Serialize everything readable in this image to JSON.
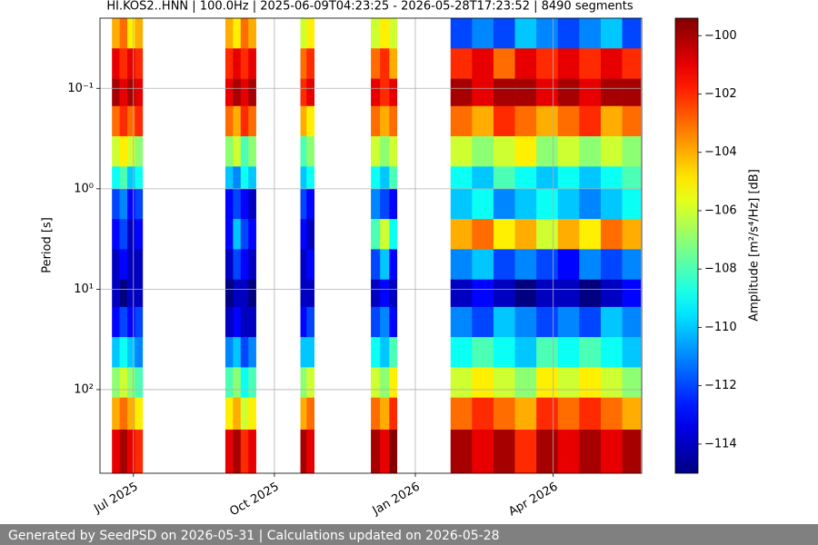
{
  "chart_data": {
    "type": "heatmap",
    "title": "HI.KOS2..HNN | 100.0Hz | 2025-06-09T04:23:25 - 2026-05-28T17:23:52 | 8490 segments",
    "y_label": "Period [s]",
    "colorbar_label": "Amplitude [m²/s⁴/Hz] [dB]",
    "colormap": "jet",
    "log_y": true,
    "y_inverted": true,
    "grid": true,
    "xlim": [
      "2025-06-09T04:23:25",
      "2026-05-28T17:23:52"
    ],
    "xticks": [
      {
        "value": "2025-07-01",
        "label": "Jul 2025"
      },
      {
        "value": "2025-10-01",
        "label": "Oct 2025"
      },
      {
        "value": "2026-01-01",
        "label": "Jan 2026"
      },
      {
        "value": "2026-04-01",
        "label": "Apr 2026"
      }
    ],
    "ylim": [
      0.02,
      680
    ],
    "yticks": [
      {
        "value": 0.1,
        "label": "10⁻¹"
      },
      {
        "value": 1,
        "label": "10⁰"
      },
      {
        "value": 10,
        "label": "10¹"
      },
      {
        "value": 100,
        "label": "10²"
      }
    ],
    "zlim": [
      -115,
      -99.4
    ],
    "zticks": [
      {
        "value": -100,
        "label": "−100"
      },
      {
        "value": -102,
        "label": "−102"
      },
      {
        "value": -104,
        "label": "−104"
      },
      {
        "value": -106,
        "label": "−106"
      },
      {
        "value": -108,
        "label": "−108"
      },
      {
        "value": -110,
        "label": "−110"
      },
      {
        "value": -112,
        "label": "−112"
      },
      {
        "value": -114,
        "label": "−114"
      }
    ],
    "x": [
      "2025-06-17",
      "2025-06-22",
      "2025-06-27",
      "2025-07-02",
      "2025-07-07",
      "2025-08-30",
      "2025-09-04",
      "2025-09-09",
      "2025-09-14",
      "2025-09-19",
      "2025-10-18",
      "2025-10-22",
      "2025-10-27",
      "2025-12-03",
      "2025-12-09",
      "2025-12-15",
      "2025-12-20",
      "2026-01-24",
      "2026-02-07",
      "2026-02-21",
      "2026-03-07",
      "2026-03-21",
      "2026-04-04",
      "2026-04-18",
      "2026-05-02",
      "2026-05-16",
      "2026-05-28"
    ],
    "bins": [
      0.02,
      0.04,
      0.08,
      0.15,
      0.3,
      0.6,
      1,
      2,
      4,
      8,
      15,
      30,
      60,
      120,
      250,
      680
    ],
    "values": [
      [
        -104,
        -103,
        -105,
        -104,
        null,
        -104,
        -105,
        -103,
        -104,
        null,
        -106,
        -105,
        null,
        -106,
        -105,
        -106,
        null,
        -112,
        -111,
        -112,
        -110,
        -111,
        -112,
        -111,
        -110,
        -112
      ],
      [
        -101,
        -102,
        -101,
        -102,
        null,
        -102,
        -101,
        -102,
        -101,
        null,
        -103,
        -102,
        null,
        -103,
        -102,
        -104,
        null,
        -102,
        -101,
        -103,
        -101,
        -102,
        -101,
        -102,
        -101,
        -102
      ],
      [
        -100,
        -101,
        -100,
        -101,
        null,
        -101,
        -100,
        -101,
        -100,
        null,
        -102,
        -101,
        null,
        -101,
        -102,
        -101,
        null,
        -100,
        -101,
        -100,
        -100,
        -101,
        -100,
        -101,
        -100,
        -100
      ],
      [
        -103,
        -102,
        -103,
        -102,
        null,
        -103,
        -104,
        -102,
        -103,
        null,
        -104,
        -105,
        null,
        -103,
        -104,
        -103,
        null,
        -103,
        -104,
        -102,
        -103,
        -104,
        -103,
        -102,
        -104,
        -103
      ],
      [
        -106,
        -105,
        -106,
        -107,
        null,
        -107,
        -106,
        -108,
        -107,
        null,
        -108,
        -107,
        null,
        -106,
        -107,
        -106,
        null,
        -106,
        -107,
        -106,
        -105,
        -107,
        -106,
        -107,
        -106,
        -107
      ],
      [
        -109,
        -108,
        -110,
        -109,
        null,
        -110,
        -111,
        -109,
        -110,
        null,
        -110,
        -109,
        null,
        -109,
        -110,
        -108,
        null,
        -109,
        -110,
        -108,
        -109,
        -110,
        -109,
        -110,
        -109,
        -108
      ],
      [
        -112,
        -111,
        -113,
        -112,
        null,
        -113,
        -112,
        -113,
        -114,
        null,
        -112,
        -113,
        null,
        -111,
        -112,
        -113,
        null,
        -110,
        -109,
        -111,
        -110,
        -109,
        -110,
        -111,
        -110,
        -109
      ],
      [
        -113,
        -112,
        -114,
        -113,
        null,
        -113,
        -110,
        -112,
        -113,
        null,
        -113,
        -114,
        null,
        -108,
        -106,
        -109,
        null,
        -104,
        -103,
        -105,
        -104,
        -106,
        -104,
        -105,
        -103,
        -104
      ],
      [
        -114,
        -113,
        -114,
        -114,
        null,
        -114,
        -112,
        -113,
        -114,
        null,
        -114,
        -113,
        null,
        -112,
        -110,
        -113,
        null,
        -111,
        -110,
        -112,
        -111,
        -112,
        -113,
        -111,
        -112,
        -111
      ],
      [
        -114,
        -115,
        -114,
        -114,
        null,
        -115,
        -114,
        -114,
        -115,
        null,
        -114,
        -114,
        null,
        -114,
        -113,
        -114,
        null,
        -114,
        -113,
        -114,
        -115,
        -114,
        -114,
        -115,
        -114,
        -113
      ],
      [
        -113,
        -112,
        -113,
        -112,
        null,
        -114,
        -113,
        -114,
        -114,
        null,
        -113,
        -112,
        null,
        -112,
        -111,
        -113,
        null,
        -111,
        -112,
        -110,
        -111,
        -112,
        -111,
        -112,
        -110,
        -111
      ],
      [
        -110,
        -109,
        -110,
        -111,
        null,
        -111,
        -110,
        -112,
        -111,
        null,
        -110,
        -110,
        null,
        -109,
        -110,
        -108,
        null,
        -109,
        -108,
        -109,
        -110,
        -108,
        -109,
        -108,
        -109,
        -110
      ],
      [
        -107,
        -106,
        -107,
        -108,
        null,
        -108,
        -107,
        -109,
        -108,
        null,
        -107,
        -106,
        null,
        -106,
        -107,
        -105,
        null,
        -106,
        -105,
        -106,
        -107,
        -105,
        -106,
        -105,
        -106,
        -107
      ],
      [
        -104,
        -103,
        -104,
        -105,
        null,
        -105,
        -104,
        -106,
        -105,
        null,
        -104,
        -103,
        null,
        -103,
        -104,
        -102,
        null,
        -103,
        -102,
        -103,
        -104,
        -102,
        -103,
        -102,
        -103,
        -104
      ],
      [
        -101,
        -100,
        -101,
        -102,
        null,
        -101,
        -100,
        -102,
        -101,
        null,
        -100,
        -101,
        null,
        -100,
        -101,
        -99.5,
        null,
        -100,
        -101,
        -100,
        -102,
        -100,
        -101,
        -100,
        -101,
        -100
      ]
    ]
  },
  "footer": "Generated by SeedPSD on 2026-05-31 | Calculations updated on 2026-05-28"
}
